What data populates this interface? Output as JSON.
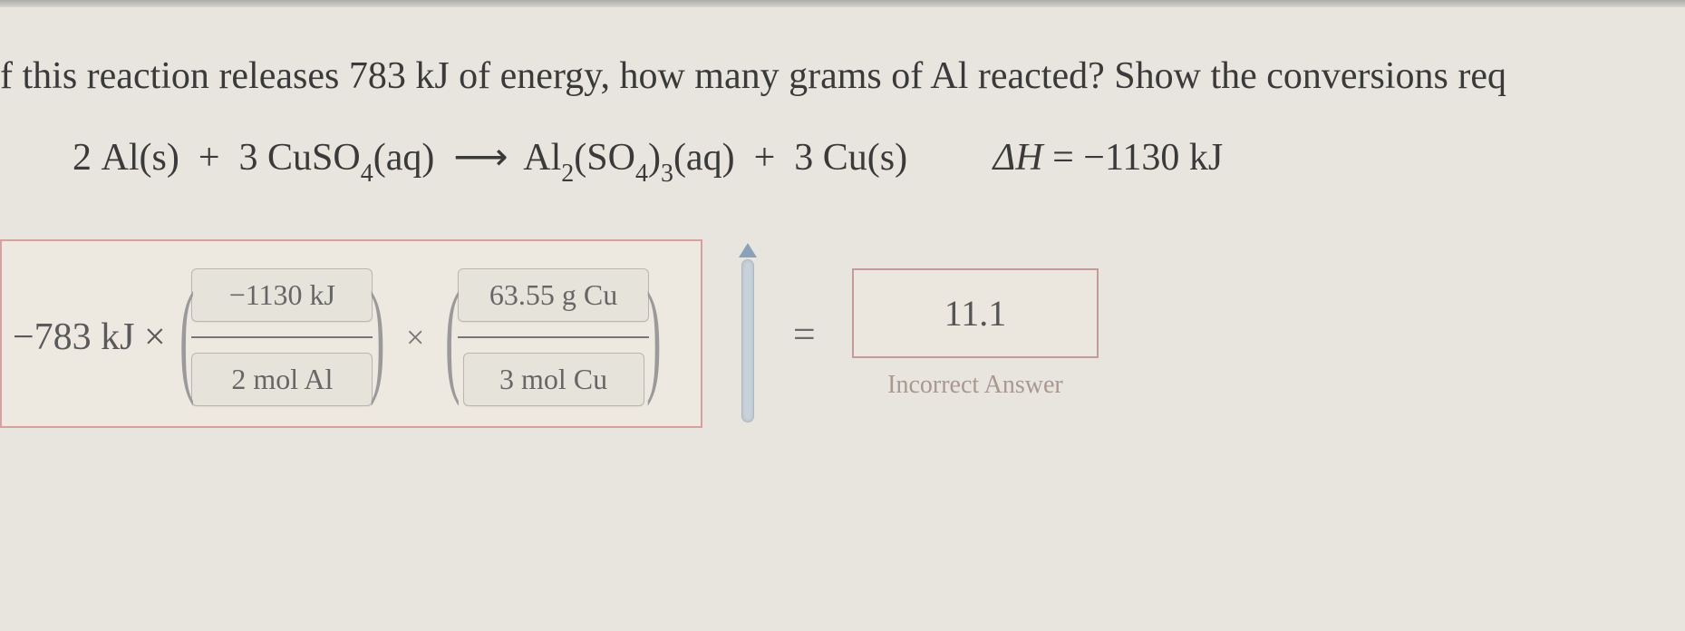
{
  "question": "f this reaction releases 783 kJ of energy, how many grams of Al reacted? Show the conversions req",
  "equation": {
    "lhs_coef1": "2",
    "lhs_sp1": "Al(s)",
    "plus1": "+",
    "lhs_coef2": "3",
    "lhs_sp2_a": "CuSO",
    "lhs_sp2_sub": "4",
    "lhs_sp2_b": "(aq)",
    "arrow": "⟶",
    "rhs_sp1_a": "Al",
    "rhs_sp1_sub1": "2",
    "rhs_sp1_b": "(SO",
    "rhs_sp1_sub2": "4",
    "rhs_sp1_c": ")",
    "rhs_sp1_sub3": "3",
    "rhs_sp1_d": "(aq)",
    "plus2": "+",
    "rhs_coef2": "3",
    "rhs_sp2": "Cu(s)",
    "deltaH_label": "ΔH",
    "deltaH_eq": "=",
    "deltaH_val": "−1130 kJ"
  },
  "work": {
    "start_value": "−783 kJ ×",
    "frac1_top": "−1130 kJ",
    "frac1_bot": "2 mol Al",
    "mult": "×",
    "frac2_top": "63.55 g Cu",
    "frac2_bot": "3 mol Cu"
  },
  "result": {
    "eq": "=",
    "answer": "11.1",
    "status": "Incorrect Answer"
  },
  "colors": {
    "background": "#e8e5de",
    "error_border": "#d9a0a0",
    "slot_border": "#b8b8b0",
    "text": "#3a3a3a"
  }
}
